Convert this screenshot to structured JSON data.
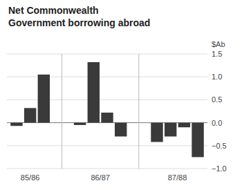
{
  "chart_data": {
    "type": "bar",
    "title": "Net Commonwealth\nGovernment borrowing abroad",
    "ylabel": "$Ab",
    "categories": [
      "85/86",
      null,
      null,
      "86/87",
      null,
      null,
      null,
      "87/88",
      null,
      null,
      null
    ],
    "values": [
      -0.07,
      0.32,
      1.05,
      -0.05,
      1.32,
      0.22,
      -0.3,
      -0.42,
      -0.3,
      -0.1,
      -0.75
    ],
    "color": "#3a3a3a",
    "ylim": [
      -1.0,
      1.5
    ],
    "yticks": [
      {
        "value": -1.0,
        "label": "−1.0"
      },
      {
        "value": -0.5,
        "label": "−0.5"
      },
      {
        "value": 0.0,
        "label": "0.0"
      },
      0.5,
      {
        "value": 1.0,
        "label": "1.0"
      },
      1.5
    ],
    "grid": true
  }
}
